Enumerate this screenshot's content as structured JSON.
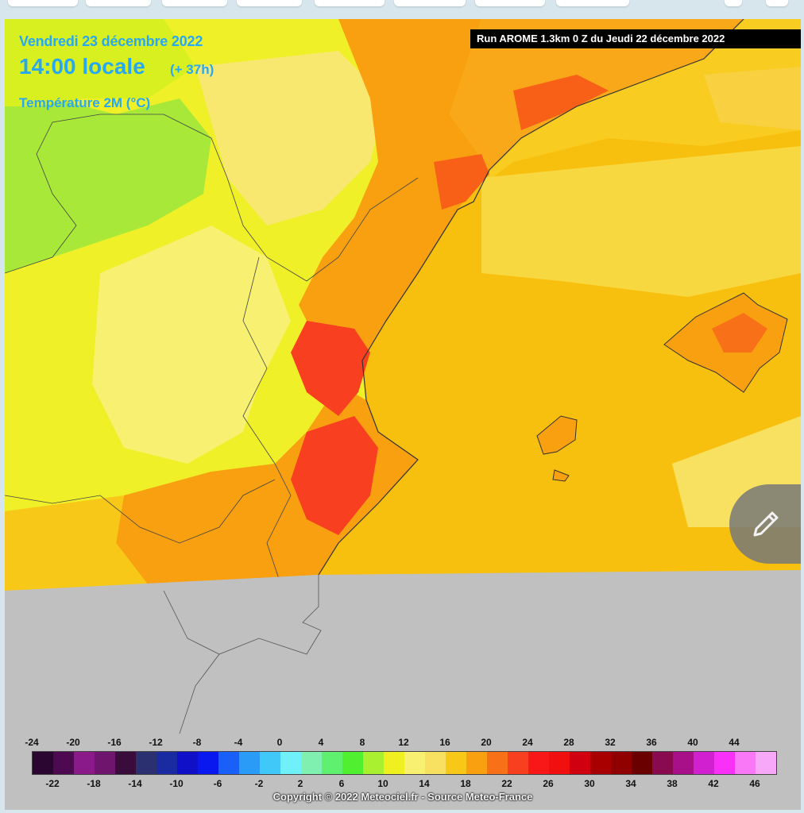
{
  "header": {
    "date": "Vendredi 23 décembre 2022",
    "time": "14:00 locale",
    "lead": "(+ 37h)",
    "parameter": "Température 2M (°C)",
    "run": "Run AROME 1.3km 0 Z du Jeudi 22 décembre 2022"
  },
  "legend": {
    "top_labels": [
      "-24",
      "-20",
      "-16",
      "-12",
      "-8",
      "-4",
      "0",
      "4",
      "8",
      "12",
      "16",
      "20",
      "24",
      "28",
      "32",
      "36",
      "40",
      "44"
    ],
    "bottom_labels": [
      "-22",
      "-18",
      "-14",
      "-10",
      "-6",
      "-2",
      "2",
      "6",
      "10",
      "14",
      "18",
      "22",
      "26",
      "30",
      "34",
      "38",
      "42",
      "46"
    ],
    "colors": [
      "#2a0630",
      "#4e0a50",
      "#8a1a8a",
      "#70156e",
      "#3a0c3c",
      "#2a3070",
      "#1a2aa0",
      "#1010c8",
      "#0a18f0",
      "#1860f8",
      "#2a9cf8",
      "#40c8f8",
      "#70f0f8",
      "#80f0b0",
      "#60f070",
      "#50f030",
      "#a8f030",
      "#f0f020",
      "#f8f070",
      "#f8e060",
      "#f8c818",
      "#f8a010",
      "#f87018",
      "#f84020",
      "#f81818",
      "#f01010",
      "#d00010",
      "#a80000",
      "#900000",
      "#6a0000",
      "#8a0a50",
      "#a8108a",
      "#d020d0",
      "#f830f8",
      "#f878f8",
      "#f8a8f8"
    ]
  },
  "copyright": "Copyright © 2022 Meteociel.fr - Source Meteo-France",
  "icons": {
    "edit": "pencil-icon"
  }
}
